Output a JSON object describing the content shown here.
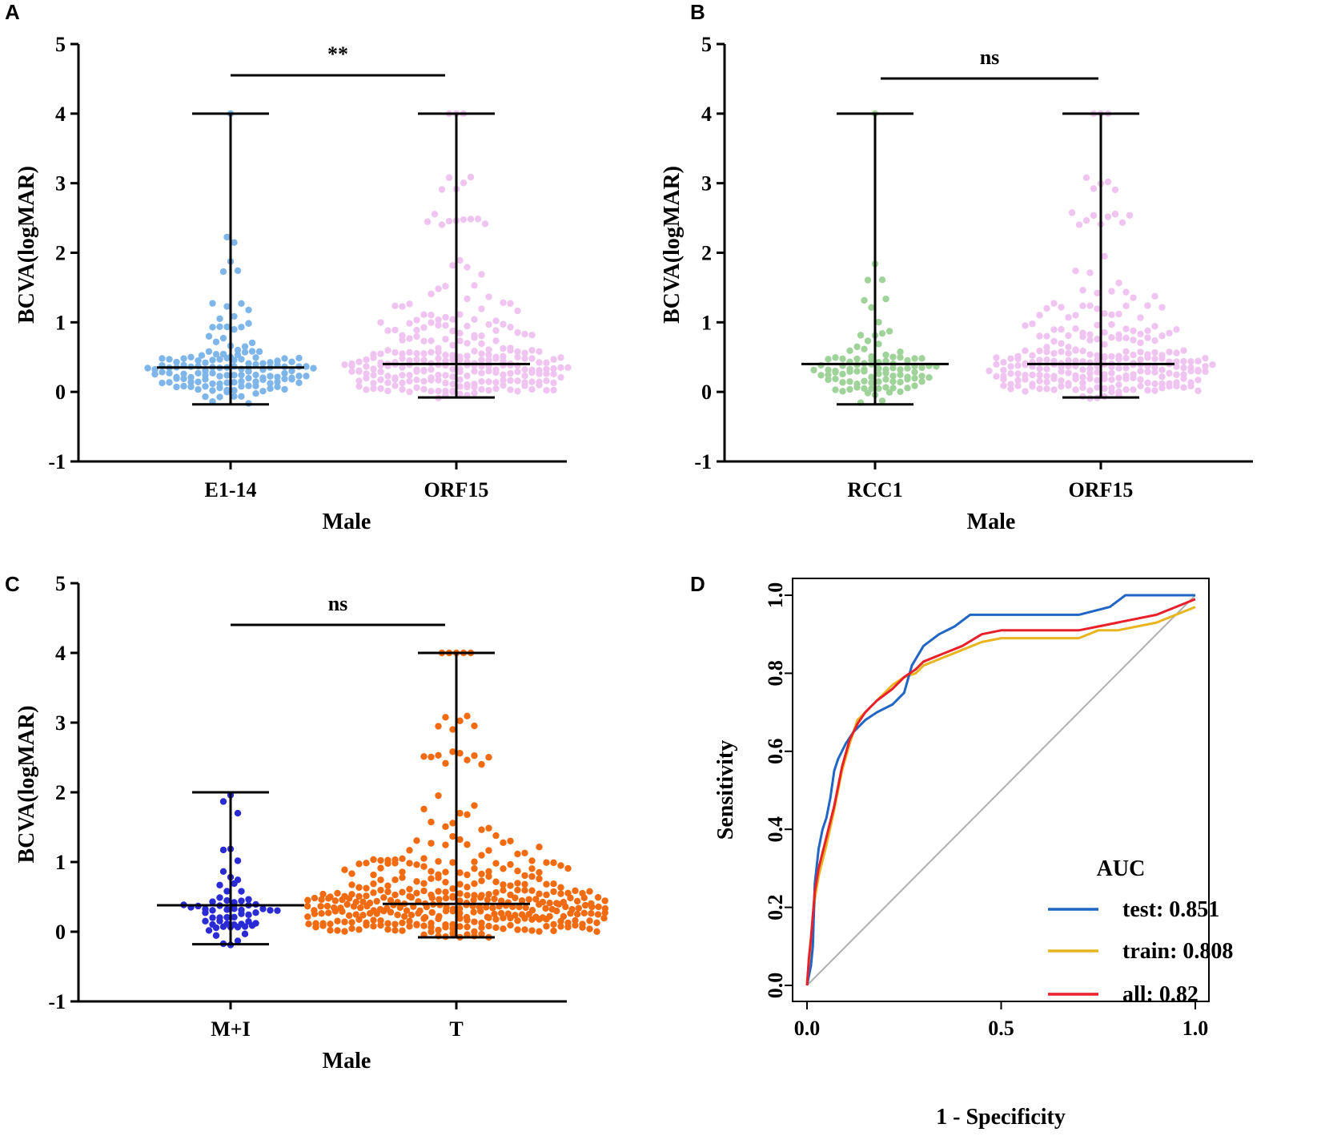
{
  "chart_data": [
    {
      "panel": "A",
      "type": "scatter",
      "subtype": "dot-plot-with-median-range",
      "ylabel": "BCVA(logMAR)",
      "xlabel": "Male",
      "ylim": [
        -1,
        5
      ],
      "yticks": [
        -1,
        0,
        1,
        2,
        3,
        4,
        5
      ],
      "significance": "**",
      "groups": [
        {
          "name": "E1-14",
          "color": "#7fb6ea",
          "median": 0.35,
          "min": -0.18,
          "max": 4.0,
          "n": 140,
          "bands": [
            [
              -0.2,
              0,
              8
            ],
            [
              0,
              0.1,
              16
            ],
            [
              0.1,
              0.2,
              20
            ],
            [
              0.2,
              0.3,
              22
            ],
            [
              0.3,
              0.4,
              24
            ],
            [
              0.4,
              0.5,
              20
            ],
            [
              0.5,
              0.6,
              9
            ],
            [
              0.6,
              0.8,
              7
            ],
            [
              0.8,
              1.0,
              6
            ],
            [
              1.0,
              1.4,
              6
            ],
            [
              1.6,
              2.0,
              3
            ],
            [
              2.0,
              2.6,
              2
            ],
            [
              4.0,
              4.0,
              1
            ]
          ]
        },
        {
          "name": "ORF15",
          "color": "#f0c4f0",
          "median": 0.4,
          "min": -0.08,
          "max": 4.0,
          "n": 260,
          "bands": [
            [
              -0.1,
              0,
              6
            ],
            [
              0,
              0.1,
              28
            ],
            [
              0.1,
              0.2,
              28
            ],
            [
              0.2,
              0.3,
              30
            ],
            [
              0.3,
              0.4,
              32
            ],
            [
              0.4,
              0.5,
              30
            ],
            [
              0.5,
              0.6,
              24
            ],
            [
              0.6,
              0.8,
              16
            ],
            [
              0.8,
              1.0,
              22
            ],
            [
              1.0,
              1.4,
              18
            ],
            [
              1.4,
              2.0,
              8
            ],
            [
              2.4,
              2.6,
              9
            ],
            [
              2.9,
              3.1,
              5
            ],
            [
              4.0,
              4.0,
              3
            ]
          ]
        }
      ]
    },
    {
      "panel": "B",
      "type": "scatter",
      "subtype": "dot-plot-with-median-range",
      "ylabel": "BCVA(logMAR)",
      "xlabel": "Male",
      "ylim": [
        -1,
        5
      ],
      "yticks": [
        -1,
        0,
        1,
        2,
        3,
        4,
        5
      ],
      "significance": "ns",
      "groups": [
        {
          "name": "RCC1",
          "color": "#9fd39a",
          "median": 0.4,
          "min": -0.18,
          "max": 4.0,
          "n": 100,
          "bands": [
            [
              -0.2,
              0,
              5
            ],
            [
              0,
              0.1,
              12
            ],
            [
              0.1,
              0.2,
              14
            ],
            [
              0.2,
              0.3,
              16
            ],
            [
              0.3,
              0.4,
              18
            ],
            [
              0.4,
              0.5,
              14
            ],
            [
              0.5,
              0.7,
              8
            ],
            [
              0.7,
              1.0,
              5
            ],
            [
              1.0,
              1.4,
              4
            ],
            [
              1.6,
              2.0,
              3
            ],
            [
              4.0,
              4.0,
              1
            ]
          ]
        },
        {
          "name": "ORF15",
          "color": "#f0c4f0",
          "median": 0.4,
          "min": -0.08,
          "max": 4.0,
          "n": 260,
          "bands": [
            [
              -0.1,
              0,
              6
            ],
            [
              0,
              0.1,
              28
            ],
            [
              0.1,
              0.2,
              28
            ],
            [
              0.2,
              0.3,
              30
            ],
            [
              0.3,
              0.4,
              32
            ],
            [
              0.4,
              0.5,
              30
            ],
            [
              0.5,
              0.6,
              24
            ],
            [
              0.6,
              0.8,
              16
            ],
            [
              0.8,
              1.0,
              22
            ],
            [
              1.0,
              1.4,
              18
            ],
            [
              1.4,
              2.0,
              8
            ],
            [
              2.4,
              2.6,
              9
            ],
            [
              2.9,
              3.1,
              5
            ],
            [
              4.0,
              4.0,
              3
            ]
          ]
        }
      ]
    },
    {
      "panel": "C",
      "type": "scatter",
      "subtype": "dot-plot-with-median-range",
      "ylabel": "BCVA(logMAR)",
      "xlabel": "Male",
      "ylim": [
        -1,
        5
      ],
      "yticks": [
        -1,
        0,
        1,
        2,
        3,
        4,
        5
      ],
      "significance": "ns",
      "groups": [
        {
          "name": "M+I",
          "color": "#2b2bd6",
          "median": 0.38,
          "min": -0.18,
          "max": 2.0,
          "n": 60,
          "bands": [
            [
              -0.2,
              0,
              5
            ],
            [
              0,
              0.1,
              7
            ],
            [
              0.1,
              0.2,
              8
            ],
            [
              0.2,
              0.3,
              8
            ],
            [
              0.3,
              0.4,
              14
            ],
            [
              0.4,
              0.5,
              6
            ],
            [
              0.5,
              0.7,
              4
            ],
            [
              0.7,
              1.0,
              3
            ],
            [
              1.0,
              1.4,
              3
            ],
            [
              1.6,
              2.0,
              3
            ]
          ]
        },
        {
          "name": "T",
          "color": "#f26b10",
          "median": 0.4,
          "min": -0.08,
          "max": 4.0,
          "n": 380,
          "bands": [
            [
              -0.1,
              0,
              10
            ],
            [
              0,
              0.1,
              40
            ],
            [
              0.1,
              0.2,
              42
            ],
            [
              0.2,
              0.3,
              44
            ],
            [
              0.3,
              0.4,
              46
            ],
            [
              0.4,
              0.5,
              44
            ],
            [
              0.5,
              0.6,
              38
            ],
            [
              0.6,
              0.8,
              30
            ],
            [
              0.8,
              1.0,
              32
            ],
            [
              1.0,
              1.4,
              24
            ],
            [
              1.4,
              2.0,
              10
            ],
            [
              2.4,
              2.6,
              10
            ],
            [
              2.9,
              3.1,
              6
            ],
            [
              4.0,
              4.0,
              5
            ]
          ]
        }
      ]
    },
    {
      "panel": "D",
      "type": "line",
      "subtype": "roc",
      "xlabel": "1 - Specificity",
      "ylabel": "Sensitivity",
      "xlim": [
        0,
        1
      ],
      "ylim": [
        0,
        1
      ],
      "xticks": [
        "0.0",
        "0.5",
        "1.0"
      ],
      "yticks": [
        "0.0",
        "0.2",
        "0.4",
        "0.6",
        "0.8",
        "1.0"
      ],
      "legend_title": "AUC",
      "legend_position": "bottom-right",
      "series": [
        {
          "name": "test: 0.851",
          "color": "#2166c4",
          "x": [
            0,
            0.01,
            0.015,
            0.02,
            0.03,
            0.04,
            0.05,
            0.06,
            0.07,
            0.08,
            0.1,
            0.12,
            0.15,
            0.18,
            0.22,
            0.25,
            0.27,
            0.3,
            0.34,
            0.38,
            0.42,
            0.5,
            0.6,
            0.7,
            0.78,
            0.82,
            0.9,
            1.0
          ],
          "y": [
            0,
            0.05,
            0.1,
            0.26,
            0.35,
            0.4,
            0.43,
            0.48,
            0.55,
            0.58,
            0.62,
            0.65,
            0.68,
            0.7,
            0.72,
            0.75,
            0.82,
            0.87,
            0.9,
            0.92,
            0.95,
            0.95,
            0.95,
            0.95,
            0.97,
            1.0,
            1.0,
            1.0
          ]
        },
        {
          "name": "train: 0.808",
          "color": "#e8b520",
          "x": [
            0,
            0.005,
            0.01,
            0.02,
            0.03,
            0.05,
            0.07,
            0.09,
            0.11,
            0.13,
            0.15,
            0.18,
            0.22,
            0.25,
            0.28,
            0.3,
            0.35,
            0.4,
            0.45,
            0.5,
            0.6,
            0.7,
            0.75,
            0.8,
            0.9,
            0.95,
            1.0
          ],
          "y": [
            0,
            0.06,
            0.1,
            0.22,
            0.28,
            0.36,
            0.45,
            0.55,
            0.62,
            0.68,
            0.7,
            0.73,
            0.77,
            0.79,
            0.8,
            0.82,
            0.84,
            0.86,
            0.88,
            0.89,
            0.89,
            0.89,
            0.91,
            0.91,
            0.93,
            0.95,
            0.97
          ]
        },
        {
          "name": "all: 0.82",
          "color": "#e8202a",
          "x": [
            0,
            0.005,
            0.01,
            0.02,
            0.03,
            0.05,
            0.07,
            0.09,
            0.11,
            0.13,
            0.15,
            0.18,
            0.22,
            0.25,
            0.28,
            0.3,
            0.35,
            0.4,
            0.45,
            0.5,
            0.6,
            0.7,
            0.75,
            0.8,
            0.9,
            0.95,
            1.0
          ],
          "y": [
            0,
            0.07,
            0.12,
            0.24,
            0.3,
            0.38,
            0.46,
            0.56,
            0.63,
            0.67,
            0.7,
            0.73,
            0.76,
            0.79,
            0.81,
            0.83,
            0.85,
            0.87,
            0.9,
            0.91,
            0.91,
            0.91,
            0.92,
            0.93,
            0.95,
            0.97,
            0.99
          ]
        }
      ]
    }
  ]
}
